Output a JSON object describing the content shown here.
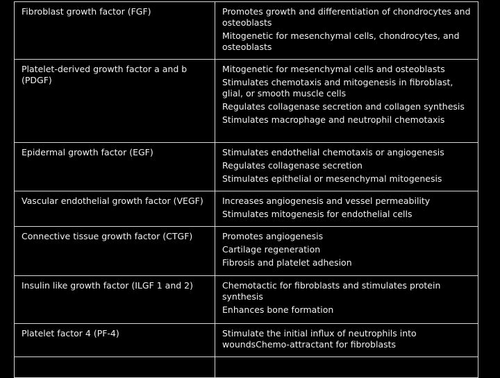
{
  "table": {
    "rows": [
      {
        "factor": "Fibroblast growth factor (FGF)",
        "functions": [
          "Promotes growth and differentiation of chondrocytes and osteoblasts",
          "Mitogenetic for mesenchymal cells, chondrocytes, and osteoblasts"
        ]
      },
      {
        "factor": "Platelet-derived growth factor a and b (PDGF)",
        "functions": [
          "Mitogenetic for mesenchymal cells and osteoblasts",
          "Stimulates chemotaxis and mitogenesis in fibroblast, glial, or smooth muscle cells",
          "Regulates collagenase secretion and collagen synthesis",
          "Stimulates macrophage and neutrophil chemotaxis"
        ]
      },
      {
        "factor": "Epidermal growth factor (EGF)",
        "functions": [
          "Stimulates endothelial chemotaxis or angiogenesis",
          "Regulates collagenase secretion",
          "Stimulates epithelial or mesenchymal mitogenesis"
        ]
      },
      {
        "factor": "Vascular endothelial growth factor (VEGF)",
        "functions": [
          "Increases angiogenesis and vessel permeability",
          "Stimulates mitogenesis for endothelial cells"
        ]
      },
      {
        "factor": "Connective tissue growth factor (CTGF)",
        "functions": [
          "Promotes angiogenesis",
          "Cartilage regeneration",
          "Fibrosis and platelet adhesion"
        ]
      },
      {
        "factor": "Insulin like growth factor (ILGF 1 and 2)",
        "functions": [
          "Chemotactic for fibroblasts and stimulates protein synthesis",
          "Enhances bone formation"
        ]
      },
      {
        "factor": "Platelet factor 4 (PF-4)",
        "functions": [
          "Stimulate the initial influx of neutrophils into woundsChemo-attractant for fibroblasts"
        ]
      }
    ]
  }
}
